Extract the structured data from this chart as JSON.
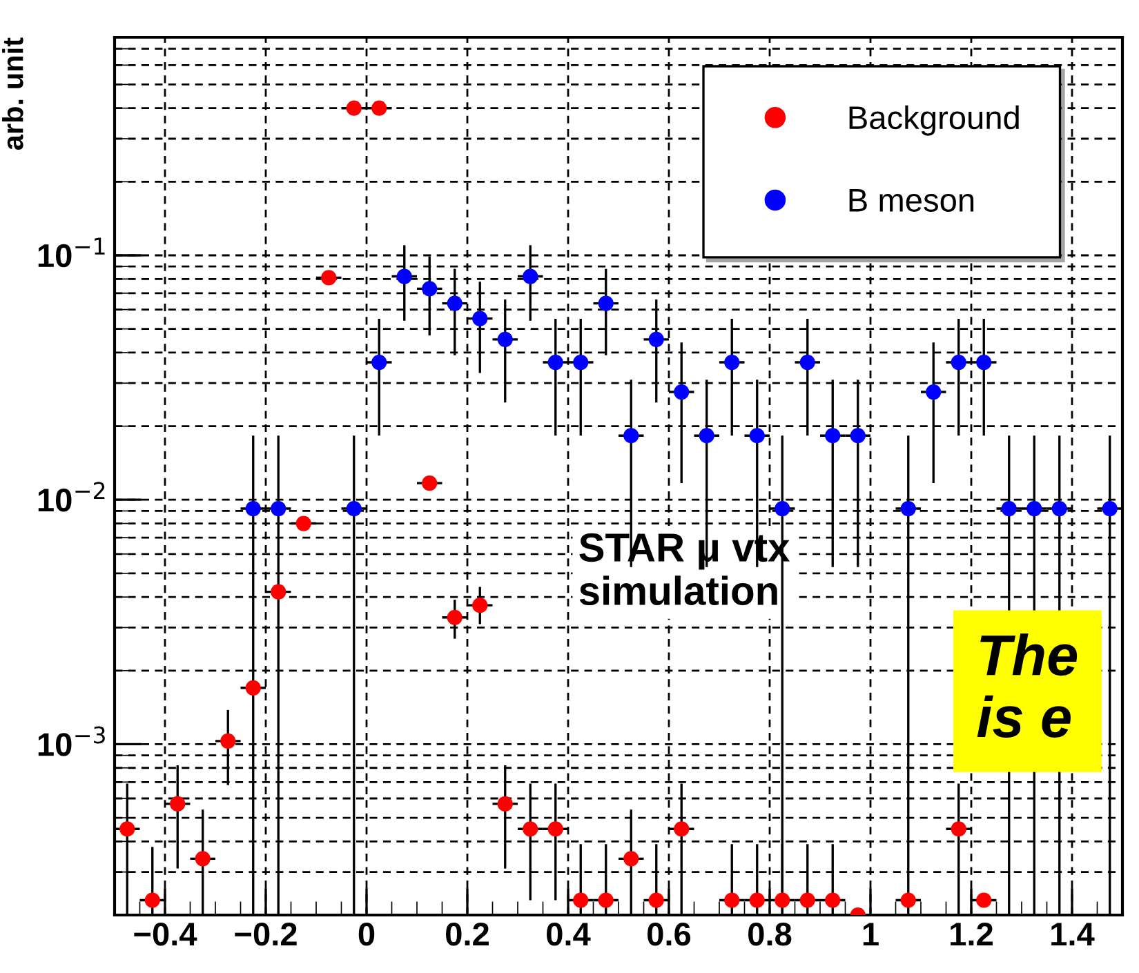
{
  "chart_data": {
    "type": "scatter",
    "ylabel": "arb. unit",
    "x": [
      -0.475,
      -0.425,
      -0.375,
      -0.325,
      -0.275,
      -0.225,
      -0.175,
      -0.125,
      -0.075,
      -0.025,
      0.025,
      0.075,
      0.125,
      0.175,
      0.225,
      0.275,
      0.325,
      0.375,
      0.425,
      0.475,
      0.525,
      0.575,
      0.625,
      0.675,
      0.725,
      0.775,
      0.825,
      0.875,
      0.925,
      0.975,
      1.025,
      1.075,
      1.125,
      1.175,
      1.225,
      1.275,
      1.325,
      1.375,
      1.425,
      1.475
    ],
    "series": [
      {
        "name": "Background",
        "color": "#ff0000",
        "values": [
          0.00045,
          0.00023,
          0.00057,
          0.00034,
          0.00103,
          0.0017,
          0.0042,
          0.008,
          0.081,
          0.4,
          0.4,
          null,
          0.0117,
          0.0033,
          0.0037,
          0.00057,
          0.00045,
          0.00045,
          0.00023,
          0.00023,
          0.00034,
          0.00023,
          0.00045,
          null,
          0.00023,
          0.00023,
          0.00023,
          0.00023,
          0.00023,
          0.0002,
          null,
          0.00023,
          null,
          0.00045,
          0.00023,
          null,
          null,
          null,
          null,
          null
        ],
        "errors": [
          [
            0.0002,
            0.00069
          ],
          [
            0.0002,
            0.00038
          ],
          [
            0.00031,
            0.00082
          ],
          [
            0.0002,
            0.00054
          ],
          [
            0.00068,
            0.00138
          ],
          null,
          null,
          null,
          null,
          null,
          null,
          null,
          null,
          [
            0.0027,
            0.0039
          ],
          [
            0.0031,
            0.0044
          ],
          [
            0.00031,
            0.00082
          ],
          [
            0.00023,
            0.00069
          ],
          [
            0.00023,
            0.00069
          ],
          [
            0.0002,
            0.00039
          ],
          [
            0.0002,
            0.00039
          ],
          [
            0.0002,
            0.00054
          ],
          [
            0.0002,
            0.00039
          ],
          [
            0.0002,
            0.00069
          ],
          null,
          [
            0.0002,
            0.00039
          ],
          [
            0.0002,
            0.00039
          ],
          [
            0.0002,
            0.00039
          ],
          [
            0.0002,
            0.00039
          ],
          [
            0.0002,
            0.00039
          ],
          null,
          null,
          null,
          null,
          [
            0.0002,
            0.00069
          ],
          null,
          null,
          null,
          null,
          null,
          null
        ],
        "xerrors": [
          0.025,
          0.025,
          0.025,
          0.025,
          0.025,
          0.025,
          0.025,
          0.025,
          0.025,
          0.025,
          0.025,
          null,
          0.025,
          0.025,
          0.025,
          0.025,
          0.025,
          0.025,
          0.025,
          0.025,
          0.025,
          0.025,
          0.025,
          null,
          0.025,
          0.025,
          0.025,
          0.025,
          0.025,
          0.025,
          null,
          0.025,
          null,
          0.025,
          0.025,
          null,
          null,
          null,
          null,
          null
        ]
      },
      {
        "name": "B meson",
        "color": "#0000ff",
        "values": [
          null,
          null,
          null,
          null,
          null,
          0.0092,
          0.0092,
          null,
          null,
          0.0092,
          0.0365,
          0.082,
          0.073,
          0.0636,
          0.0551,
          0.0453,
          0.082,
          0.0365,
          0.0365,
          0.0636,
          0.0183,
          0.0453,
          0.0276,
          0.0183,
          0.0365,
          0.0183,
          0.0092,
          0.0365,
          0.0183,
          0.0183,
          null,
          0.0092,
          0.0276,
          0.0365,
          0.0365,
          0.0092,
          0.0092,
          0.0092,
          null,
          0.0092
        ],
        "errors": [
          null,
          null,
          null,
          null,
          null,
          [
            0.0002,
            0.0183
          ],
          [
            0.0002,
            0.0183
          ],
          null,
          null,
          [
            0.0002,
            0.0183
          ],
          [
            0.0183,
            0.055
          ],
          [
            0.054,
            0.11
          ],
          [
            0.047,
            0.099
          ],
          [
            0.039,
            0.088
          ],
          [
            0.033,
            0.078
          ],
          [
            0.025,
            0.066
          ],
          [
            0.054,
            0.11
          ],
          [
            0.0183,
            0.055
          ],
          [
            0.0183,
            0.055
          ],
          [
            0.039,
            0.088
          ],
          [
            0.0053,
            0.031
          ],
          [
            0.025,
            0.066
          ],
          [
            0.0117,
            0.044
          ],
          [
            0.0053,
            0.031
          ],
          [
            0.0183,
            0.055
          ],
          [
            0.0053,
            0.031
          ],
          [
            0.0002,
            0.0183
          ],
          [
            0.0183,
            0.055
          ],
          [
            0.0053,
            0.031
          ],
          [
            0.0053,
            0.031
          ],
          null,
          [
            0.0002,
            0.0183
          ],
          [
            0.0117,
            0.044
          ],
          [
            0.0183,
            0.055
          ],
          [
            0.0183,
            0.055
          ],
          [
            0.0002,
            0.0183
          ],
          [
            0.0002,
            0.0183
          ],
          [
            0.0002,
            0.0183
          ],
          null,
          [
            0.0002,
            0.0183
          ]
        ],
        "xerrors": [
          null,
          null,
          null,
          null,
          null,
          0.025,
          0.025,
          null,
          null,
          0.025,
          0.025,
          0.025,
          0.025,
          0.025,
          0.025,
          0.025,
          0.025,
          0.025,
          0.025,
          0.025,
          0.025,
          0.025,
          0.025,
          0.025,
          0.025,
          0.025,
          0.025,
          0.025,
          0.025,
          0.025,
          null,
          0.025,
          0.025,
          0.025,
          0.025,
          0.025,
          0.025,
          0.025,
          null,
          0.025
        ]
      }
    ],
    "xlim": [
      -0.5,
      1.5
    ],
    "xticks": [
      {
        "value": -0.4,
        "label": "−0.4"
      },
      {
        "value": -0.2,
        "label": "−0.2"
      },
      0,
      0.2,
      0.4,
      0.6,
      0.8,
      1,
      1.2,
      1.4
    ],
    "ylim": [
      0.0002,
      0.78
    ],
    "log": "y",
    "yticks": [
      {
        "value": 0.001,
        "label": "10$^{−3}$"
      },
      {
        "value": 0.01,
        "label": "10$^{−2}$"
      },
      {
        "value": 0.1,
        "label": "10$^{−1}$"
      }
    ],
    "grid": true,
    "legend": "top right",
    "marker": "circle",
    "annotations": [
      "STAR μ vtx\nsimulation",
      "The\nis e"
    ]
  }
}
